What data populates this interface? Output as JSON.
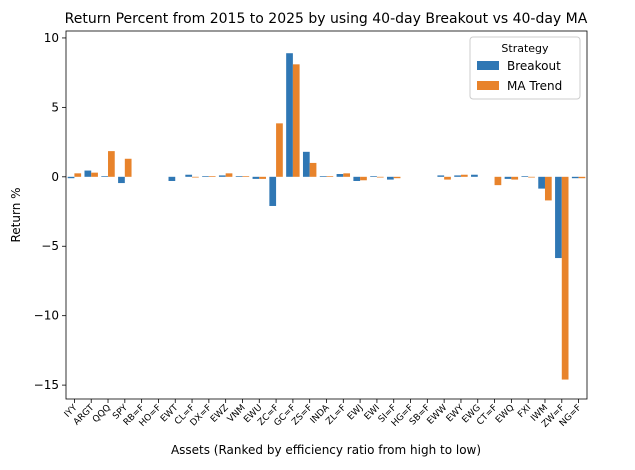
{
  "chart_data": {
    "type": "bar",
    "title": "Return Percent from 2015 to 2025 by using 40-day Breakout vs 40-day MA",
    "xlabel": "Assets (Ranked by efficiency ratio from high to low)",
    "ylabel": "Return %",
    "ylim": [
      -16,
      10.5
    ],
    "yticks": [
      10,
      5,
      0,
      -5,
      -10,
      -15
    ],
    "ytick_labels": [
      "10",
      "5",
      "0",
      "−5",
      "−10",
      "−15"
    ],
    "grid": false,
    "legend": {
      "title": "Strategy",
      "placement": "top-right"
    },
    "categories": [
      "IYY",
      "ARGT",
      "QQQ",
      "SPY",
      "RB=F",
      "HO=F",
      "EWT",
      "CL=F",
      "DX=F",
      "EWZ",
      "VNM",
      "EWU",
      "ZC=F",
      "GC=F",
      "ZS=F",
      "INDA",
      "ZL=F",
      "EWJ",
      "EWI",
      "SI=F",
      "HG=F",
      "SB=F",
      "EWW",
      "EWY",
      "EWG",
      "CT=F",
      "EWQ",
      "FXI",
      "IWM",
      "ZW=F",
      "NG=F"
    ],
    "series": [
      {
        "name": "Breakout",
        "color": "#2f77b4",
        "values": [
          -0.1,
          0.45,
          0.05,
          -0.45,
          0,
          0,
          -0.3,
          0.15,
          0.05,
          0.1,
          0.05,
          -0.15,
          -2.1,
          8.9,
          1.8,
          0.05,
          0.2,
          -0.3,
          0.05,
          -0.2,
          0,
          0,
          0.1,
          0.1,
          0.15,
          0,
          -0.15,
          0.05,
          -0.85,
          -5.85,
          -0.1
        ]
      },
      {
        "name": "MA Trend",
        "color": "#e8832b",
        "values": [
          0.25,
          0.3,
          1.85,
          1.3,
          0,
          0,
          0,
          -0.05,
          0.05,
          0.25,
          0.05,
          -0.15,
          3.85,
          8.1,
          1.0,
          0.05,
          0.25,
          -0.25,
          -0.05,
          -0.1,
          0,
          0,
          -0.2,
          0.15,
          0,
          -0.6,
          -0.2,
          -0.05,
          -1.7,
          -14.6,
          -0.1
        ]
      }
    ]
  }
}
